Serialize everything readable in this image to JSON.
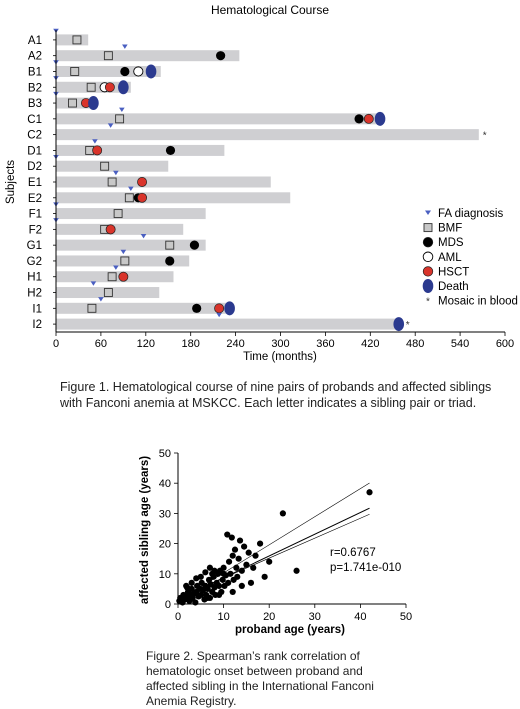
{
  "chart_data": [
    {
      "type": "bar",
      "title": "Hematological Course",
      "xlabel": "Time (months)",
      "ylabel": "Subjects",
      "xlim": [
        0,
        600
      ],
      "xticks": [
        0,
        60,
        120,
        180,
        240,
        300,
        360,
        420,
        480,
        540,
        600
      ],
      "legend_placement": "right",
      "legend": [
        {
          "key": "fa",
          "label": "FA diagnosis",
          "marker": "triangle",
          "color": "#4a5fc1"
        },
        {
          "key": "bmf",
          "label": "BMF",
          "marker": "square",
          "color": "#c8c8c8"
        },
        {
          "key": "mds",
          "label": "MDS",
          "marker": "circle",
          "color": "#000000"
        },
        {
          "key": "aml",
          "label": "AML",
          "marker": "circle-open",
          "color": "#ffffff"
        },
        {
          "key": "hsct",
          "label": "HSCT",
          "marker": "circle",
          "color": "#d9342b"
        },
        {
          "key": "death",
          "label": "Death",
          "marker": "ellipse",
          "color": "#2b3a8f"
        },
        {
          "key": "mosaic",
          "label": "Mosaic in blood",
          "marker": "asterisk",
          "color": "#333333"
        }
      ],
      "subjects": [
        {
          "label": "A1",
          "followup": 43,
          "fa": 0,
          "bmf": 28
        },
        {
          "label": "A2",
          "followup": 245,
          "fa": 92,
          "bmf": 70,
          "mds": 220
        },
        {
          "label": "B1",
          "followup": 140,
          "fa": 0,
          "bmf": 25,
          "mds": 92,
          "aml": 110,
          "death": 127
        },
        {
          "label": "B2",
          "followup": 100,
          "fa": 0,
          "bmf": 47,
          "aml": 65,
          "hsct": 72,
          "death": 90
        },
        {
          "label": "B3",
          "followup": 50,
          "fa": 0,
          "bmf": 22,
          "hsct": 40,
          "death": 50
        },
        {
          "label": "C1",
          "followup": 435,
          "fa": 88,
          "bmf": 85,
          "mds": 405,
          "hsct": 418,
          "death": 433
        },
        {
          "label": "C2",
          "followup": 565,
          "fa": 73,
          "mosaic": true
        },
        {
          "label": "D1",
          "followup": 225,
          "fa": 52,
          "bmf": 45,
          "hsct": 55,
          "mds": 153
        },
        {
          "label": "D2",
          "followup": 150,
          "fa": 0,
          "bmf": 65
        },
        {
          "label": "E1",
          "followup": 287,
          "fa": 80,
          "bmf": 75,
          "hsct": 115
        },
        {
          "label": "E2",
          "followup": 313,
          "fa": 100,
          "bmf": 98,
          "mds": 110,
          "hsct": 115
        },
        {
          "label": "F1",
          "followup": 200,
          "fa": 0,
          "bmf": 83
        },
        {
          "label": "F2",
          "followup": 170,
          "fa": 0,
          "bmf": 65,
          "hsct": 73
        },
        {
          "label": "G1",
          "followup": 200,
          "fa": 117,
          "bmf": 152,
          "mds": 185
        },
        {
          "label": "G2",
          "followup": 178,
          "fa": 90,
          "bmf": 92,
          "mds": 152
        },
        {
          "label": "H1",
          "followup": 157,
          "fa": 80,
          "bmf": 75,
          "hsct": 90
        },
        {
          "label": "H2",
          "followup": 138,
          "fa": 50,
          "bmf": 70
        },
        {
          "label": "I1",
          "followup": 230,
          "fa": 60,
          "bmf": 48,
          "mds": 188,
          "hsct": 218,
          "death": 232
        },
        {
          "label": "I2",
          "followup": 462,
          "fa": 218,
          "death": 458,
          "mosaic": true
        }
      ]
    },
    {
      "type": "scatter",
      "xlabel": "proband age (years)",
      "ylabel": "affected sibling age (years)",
      "xlim": [
        0,
        50
      ],
      "ylim": [
        0,
        50
      ],
      "xticks": [
        0,
        10,
        20,
        30,
        40,
        50
      ],
      "yticks": [
        0,
        10,
        20,
        30,
        40,
        50
      ],
      "annotation": [
        "r=0.6767",
        "p=1.741e-010"
      ],
      "fit": {
        "slope": 0.72,
        "intercept": 1.5,
        "ci_upper": {
          "slope": 0.93,
          "intercept": 1.0
        },
        "ci_lower": {
          "slope": 0.66,
          "intercept": 2.0
        }
      },
      "points": [
        [
          0.3,
          1
        ],
        [
          0.5,
          2
        ],
        [
          1,
          0.5
        ],
        [
          1.2,
          3
        ],
        [
          1.5,
          1.5
        ],
        [
          2,
          2.5
        ],
        [
          2.2,
          4
        ],
        [
          2.5,
          1
        ],
        [
          2.8,
          3
        ],
        [
          3,
          5
        ],
        [
          3.2,
          2
        ],
        [
          3.5,
          3.5
        ],
        [
          3.8,
          0.5
        ],
        [
          4,
          4
        ],
        [
          4.2,
          6
        ],
        [
          4.5,
          2.5
        ],
        [
          4.8,
          5
        ],
        [
          5,
          3
        ],
        [
          5.2,
          7
        ],
        [
          5.5,
          4.5
        ],
        [
          5.8,
          1.5
        ],
        [
          6,
          6
        ],
        [
          6.2,
          3
        ],
        [
          6.5,
          5
        ],
        [
          6.8,
          8
        ],
        [
          7,
          2
        ],
        [
          7.2,
          6.5
        ],
        [
          7.5,
          4
        ],
        [
          7.8,
          9
        ],
        [
          8,
          5.5
        ],
        [
          8.2,
          3
        ],
        [
          8.5,
          7
        ],
        [
          8.8,
          10
        ],
        [
          9,
          6
        ],
        [
          9.2,
          11
        ],
        [
          9.5,
          4
        ],
        [
          9.8,
          8
        ],
        [
          10,
          12
        ],
        [
          10.2,
          6
        ],
        [
          10.5,
          9.5
        ],
        [
          10.8,
          23
        ],
        [
          11,
          7
        ],
        [
          11.2,
          14
        ],
        [
          11.5,
          10
        ],
        [
          11.8,
          22
        ],
        [
          12,
          16
        ],
        [
          12.2,
          8
        ],
        [
          12.5,
          18
        ],
        [
          12.8,
          12
        ],
        [
          13,
          9
        ],
        [
          13.3,
          15
        ],
        [
          13.6,
          21
        ],
        [
          14,
          11
        ],
        [
          14.5,
          19
        ],
        [
          15,
          13
        ],
        [
          15.5,
          17
        ],
        [
          16,
          7
        ],
        [
          16.5,
          12
        ],
        [
          17,
          16
        ],
        [
          18,
          20
        ],
        [
          19,
          9
        ],
        [
          20,
          14
        ],
        [
          23,
          30
        ],
        [
          26,
          11
        ],
        [
          42,
          37
        ],
        [
          6,
          10.5
        ],
        [
          7,
          12
        ],
        [
          8,
          11
        ],
        [
          3,
          7
        ],
        [
          2,
          5.5
        ],
        [
          4,
          8.5
        ],
        [
          5,
          9
        ],
        [
          1.8,
          6
        ],
        [
          6.5,
          2
        ],
        [
          9,
          3
        ],
        [
          12,
          4
        ],
        [
          7.5,
          10
        ],
        [
          10,
          10
        ],
        [
          14,
          6
        ]
      ]
    }
  ],
  "captions": {
    "figure1": "Figure 1. Hematological course of nine pairs of probands and affected siblings with Fanconi anemia at MSKCC. Each letter indicates a sibling pair or triad.",
    "figure2": "Figure 2. Spearman’s rank correlation of hematologic onset between proband and affected sibling in the International Fanconi Anemia Registry."
  }
}
